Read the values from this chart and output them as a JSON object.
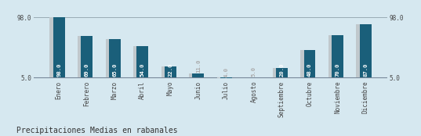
{
  "categories": [
    "Enero",
    "Febrero",
    "Marzo",
    "Abril",
    "Mayo",
    "Junio",
    "Julio",
    "Agosto",
    "Septiembre",
    "Octubre",
    "Noviembre",
    "Diciembre"
  ],
  "values": [
    98.0,
    69.0,
    65.0,
    54.0,
    22.0,
    11.0,
    4.0,
    5.0,
    20.0,
    48.0,
    70.0,
    87.0
  ],
  "bar_color": "#1a5f7a",
  "shadow_color": "#c0c8cc",
  "background_color": "#d6e8f0",
  "title": "Precipitaciones Medias en rabanales",
  "ymin": 5.0,
  "ymax": 98.0,
  "label_color_inside": "#ffffff",
  "label_color_outside": "#aaaaaa",
  "label_fontsize": 5.2,
  "title_fontsize": 7.0,
  "axis_fontsize": 5.5,
  "inside_threshold": 18
}
